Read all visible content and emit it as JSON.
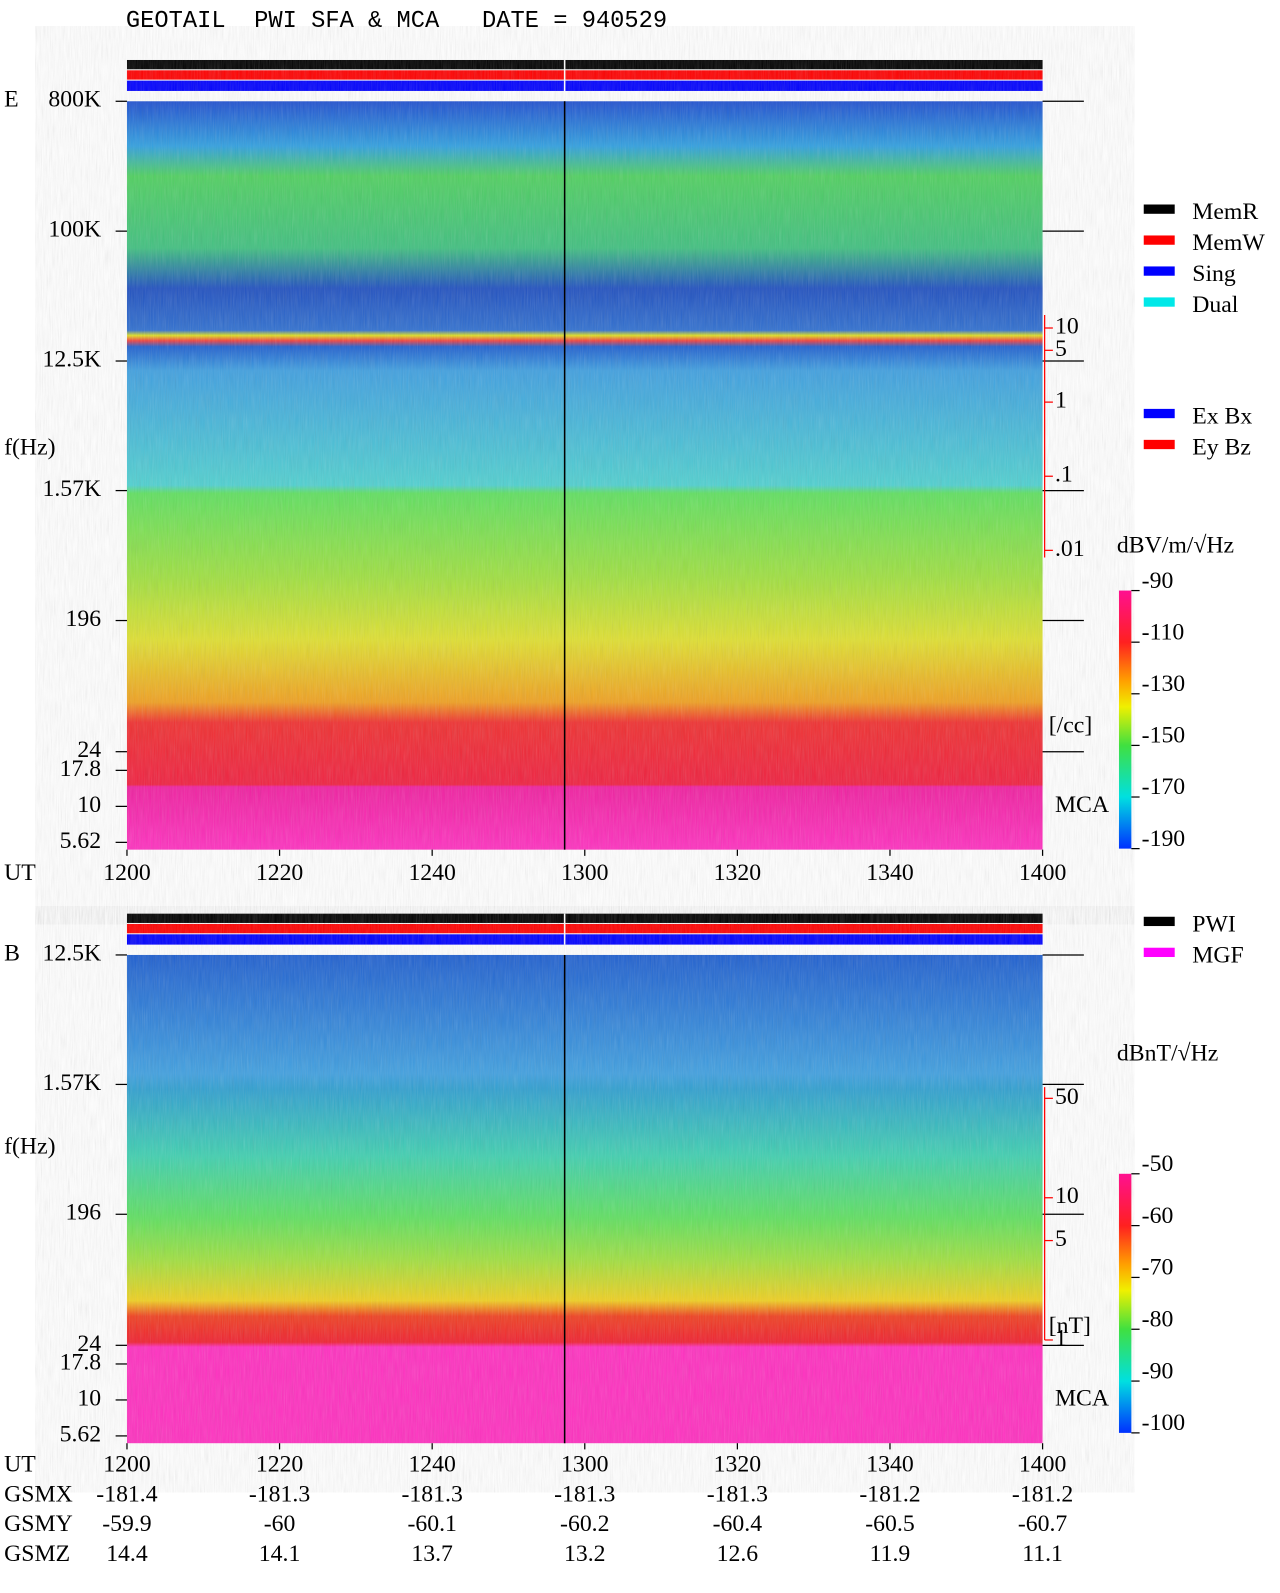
{
  "title": "GEOTAIL  PWI SFA & MCA   DATE = 940529",
  "chart_data": [
    {
      "type": "spectrogram",
      "panel_label": "E",
      "ylabel": "f(Hz)",
      "xlabel": "UT",
      "log_y": true,
      "ylim": [
        5,
        800000
      ],
      "yticks": [
        {
          "value": 800000,
          "label": "800K"
        },
        {
          "value": 100000,
          "label": "100K"
        },
        {
          "value": 12500,
          "label": "12.5K"
        },
        {
          "value": 1570,
          "label": "1.57K"
        },
        196,
        24,
        17.8,
        10,
        5.62
      ],
      "xlim": [
        720,
        840
      ],
      "xticks": [
        {
          "value": 720,
          "label": "1200"
        },
        {
          "value": 740,
          "label": "1220"
        },
        {
          "value": 760,
          "label": "1240"
        },
        {
          "value": 780,
          "label": "1300"
        },
        {
          "value": 800,
          "label": "1320"
        },
        {
          "value": 820,
          "label": "1340"
        },
        {
          "value": 840,
          "label": "1400"
        }
      ],
      "y2lim": [
        0.008,
        15
      ],
      "y2_log": true,
      "y2ticks": [
        10,
        5,
        1,
        {
          "value": 0.1,
          "label": ".1"
        },
        {
          "value": 0.01,
          "label": ".01"
        }
      ],
      "y2label": "[/cc]",
      "y2color": "#ff0000",
      "mca_label": "MCA",
      "colorbar": {
        "label": "dBV/m/√Hz",
        "lim": [
          -190,
          -90
        ],
        "ticks": [
          -90,
          -110,
          -130,
          -150,
          -170,
          -190
        ]
      },
      "legend": [
        {
          "name": "MemR",
          "color": "#000000"
        },
        {
          "name": "MemW",
          "color": "#ff0000"
        },
        {
          "name": "Sing",
          "color": "#0000ff"
        },
        {
          "name": "Dual",
          "color": "#00e8e8"
        }
      ],
      "legend2": [
        {
          "name": "Ex Bx",
          "color": "#0000ff"
        },
        {
          "name": "Ey Bz",
          "color": "#ff0000"
        }
      ]
    },
    {
      "type": "spectrogram",
      "panel_label": "B",
      "ylabel": "f(Hz)",
      "xlabel": "UT",
      "log_y": true,
      "ylim": [
        5,
        12500
      ],
      "yticks": [
        {
          "value": 12500,
          "label": "12.5K"
        },
        {
          "value": 1570,
          "label": "1.57K"
        },
        196,
        24,
        17.8,
        10,
        5.62
      ],
      "xlim": [
        720,
        840
      ],
      "xticks": [
        {
          "value": 720,
          "label": "1200"
        },
        {
          "value": 740,
          "label": "1220"
        },
        {
          "value": 760,
          "label": "1240"
        },
        {
          "value": 780,
          "label": "1300"
        },
        {
          "value": 800,
          "label": "1320"
        },
        {
          "value": 820,
          "label": "1340"
        },
        {
          "value": 840,
          "label": "1400"
        }
      ],
      "y2lim": [
        1,
        60
      ],
      "y2_log": true,
      "y2ticks": [
        50,
        10,
        5,
        1
      ],
      "y2label": "[nT]",
      "y2color": "#ff0000",
      "mca_label": "MCA",
      "colorbar": {
        "label": "dBnT/√Hz",
        "lim": [
          -100,
          -50
        ],
        "ticks": [
          -50,
          -60,
          -70,
          -80,
          -90,
          -100
        ]
      },
      "legend": [
        {
          "name": "PWI",
          "color": "#000000"
        },
        {
          "name": "MGF",
          "color": "#ff00ff"
        }
      ]
    }
  ],
  "orbit": {
    "labels": [
      "GSMX",
      "GSMY",
      "GSMZ"
    ],
    "rows": [
      [
        -181.4,
        -181.3,
        -181.3,
        -181.3,
        -181.3,
        -181.2,
        -181.2
      ],
      [
        -59.9,
        -60.0,
        -60.1,
        -60.2,
        -60.4,
        -60.5,
        -60.7
      ],
      [
        14.4,
        14.1,
        13.7,
        13.2,
        12.6,
        11.9,
        11.1
      ]
    ]
  }
}
